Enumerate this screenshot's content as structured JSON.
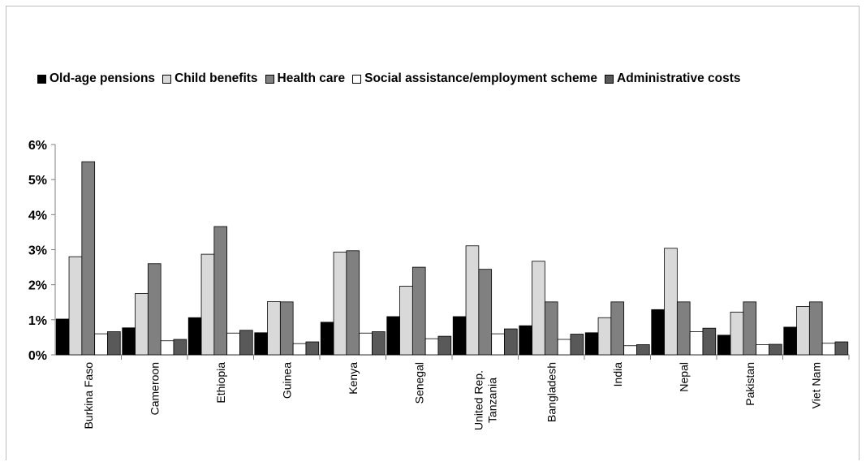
{
  "chart_data": {
    "type": "bar",
    "title": "",
    "xlabel": "",
    "ylabel": "",
    "ylim": [
      0,
      6
    ],
    "y_ticks": [
      "0%",
      "1%",
      "2%",
      "3%",
      "4%",
      "5%",
      "6%"
    ],
    "gridlines": false,
    "legend_position": "top",
    "categories": [
      "Burkina Faso",
      "Cameroon",
      "Ethiopia",
      "Guinea",
      "Kenya",
      "Senegal",
      "United Rep. Tanzania",
      "Bangladesh",
      "India",
      "Nepal",
      "Pakistan",
      "Viet Nam"
    ],
    "series": [
      {
        "name": "Old-age pensions",
        "color": "#000000",
        "values": [
          1.02,
          0.77,
          1.06,
          0.63,
          0.93,
          1.09,
          1.09,
          0.83,
          0.63,
          1.29,
          0.56,
          0.79
        ]
      },
      {
        "name": "Child benefits",
        "color": "#d9d9d9",
        "values": [
          2.8,
          1.75,
          2.87,
          1.52,
          2.93,
          1.96,
          3.11,
          2.67,
          1.06,
          3.04,
          1.22,
          1.38
        ]
      },
      {
        "name": "Health care",
        "color": "#808080",
        "values": [
          5.51,
          2.6,
          3.66,
          1.51,
          2.97,
          2.5,
          2.44,
          1.51,
          1.51,
          1.51,
          1.51,
          1.51
        ]
      },
      {
        "name": "Social assistance/employment scheme",
        "color": "#ffffff",
        "values": [
          0.6,
          0.4,
          0.62,
          0.32,
          0.62,
          0.46,
          0.6,
          0.44,
          0.26,
          0.66,
          0.29,
          0.33
        ]
      },
      {
        "name": "Administrative costs",
        "color": "#595959",
        "values": [
          0.66,
          0.44,
          0.7,
          0.37,
          0.66,
          0.53,
          0.74,
          0.59,
          0.29,
          0.76,
          0.3,
          0.37
        ]
      }
    ]
  }
}
